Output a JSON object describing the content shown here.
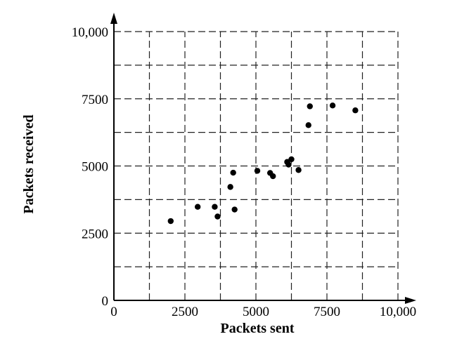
{
  "chart_data": {
    "type": "scatter",
    "title": "",
    "xlabel": "Packets sent",
    "ylabel": "Packets received",
    "xlim": [
      0,
      10000
    ],
    "ylim": [
      0,
      10000
    ],
    "xticks": [
      0,
      2500,
      5000,
      7500,
      10000
    ],
    "yticks": [
      0,
      2500,
      5000,
      7500,
      10000
    ],
    "xtick_labels": [
      "0",
      "2500",
      "5000",
      "7500",
      "10,000"
    ],
    "ytick_labels": [
      "0",
      "2500",
      "5000",
      "7500",
      "10,000"
    ],
    "grid": true,
    "grid_step": 1250,
    "grid_style": "dashed",
    "marker_color": "#000000",
    "points": [
      {
        "x": 2000,
        "y": 2950
      },
      {
        "x": 2950,
        "y": 3480
      },
      {
        "x": 3550,
        "y": 3480
      },
      {
        "x": 3650,
        "y": 3120
      },
      {
        "x": 4100,
        "y": 4220
      },
      {
        "x": 4200,
        "y": 4750
      },
      {
        "x": 4250,
        "y": 3380
      },
      {
        "x": 5050,
        "y": 4820
      },
      {
        "x": 5500,
        "y": 4740
      },
      {
        "x": 5600,
        "y": 4620
      },
      {
        "x": 6100,
        "y": 5150
      },
      {
        "x": 6150,
        "y": 5050
      },
      {
        "x": 6250,
        "y": 5250
      },
      {
        "x": 6500,
        "y": 4850
      },
      {
        "x": 6850,
        "y": 6520
      },
      {
        "x": 6900,
        "y": 7220
      },
      {
        "x": 7700,
        "y": 7250
      },
      {
        "x": 8500,
        "y": 7070
      }
    ]
  }
}
